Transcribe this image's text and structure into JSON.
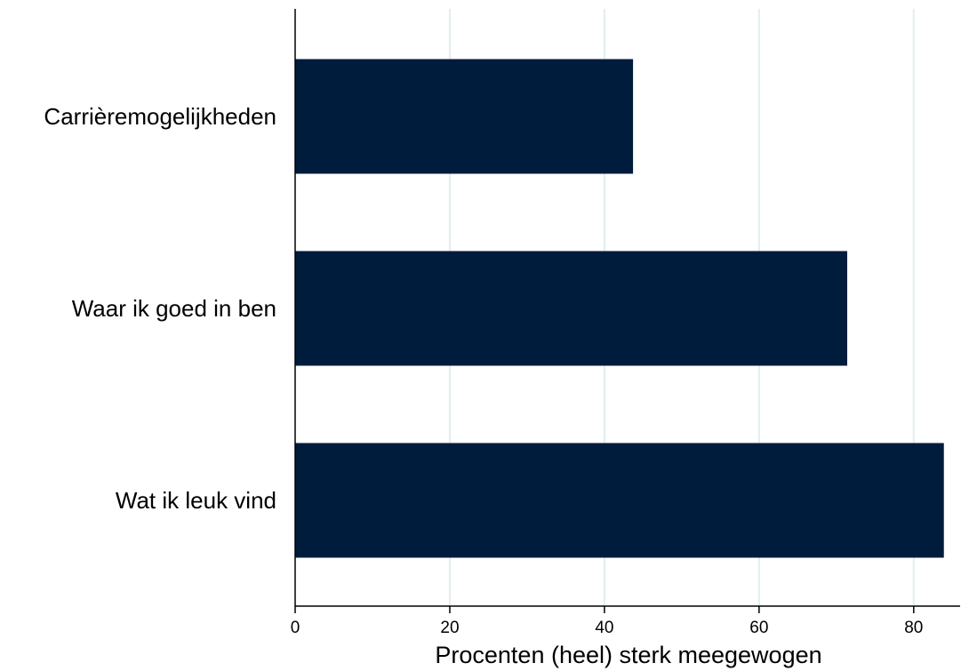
{
  "chart_data": {
    "type": "bar",
    "orientation": "horizontal",
    "categories": [
      "Carrièremogelijkheden",
      "Waar ik goed in ben",
      "Wat ik leuk vind"
    ],
    "values": [
      43.7,
      71.4,
      83.9
    ],
    "xlabel": "Procenten (heel) sterk meegewogen",
    "ylabel": "",
    "xlim": [
      0,
      86
    ],
    "xticks": [
      0,
      20,
      40,
      60,
      80
    ],
    "grid": "vertical",
    "legend": "none",
    "colors": {
      "bar": "#001c3d",
      "grid": "#e3eeee",
      "axis": "#000000"
    }
  }
}
